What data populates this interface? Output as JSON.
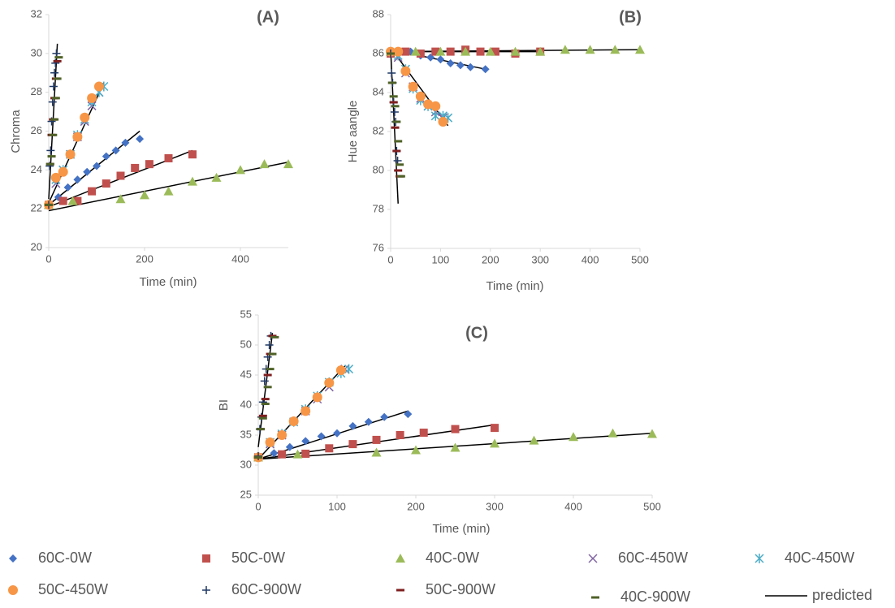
{
  "legend": [
    {
      "name": "60C-0W",
      "color": "#4472c4",
      "marker": "diamond"
    },
    {
      "name": "50C-0W",
      "color": "#c0504d",
      "marker": "square"
    },
    {
      "name": "40C-0W",
      "color": "#9bbb59",
      "marker": "triangle"
    },
    {
      "name": "60C-450W",
      "color": "#8064a2",
      "marker": "x"
    },
    {
      "name": "40C-450W",
      "color": "#4bacc6",
      "marker": "asterisk"
    },
    {
      "name": "50C-450W",
      "color": "#f79646",
      "marker": "circle"
    },
    {
      "name": "60C-900W",
      "color": "#1f3864",
      "marker": "plus"
    },
    {
      "name": "50C-900W",
      "color": "#7f1f1f",
      "marker": "dash"
    },
    {
      "name": "40C-900W",
      "color": "#4f6228",
      "marker": "dash"
    },
    {
      "name": "predicted",
      "color": "#000000",
      "marker": "line"
    }
  ],
  "chart_data": [
    {
      "type": "scatter",
      "title": "(A)",
      "xlabel": "Time (min)",
      "ylabel": "Chroma",
      "xlim": [
        0,
        500
      ],
      "ylim": [
        20,
        32
      ],
      "xticks": [
        0,
        200,
        400
      ],
      "yticks": [
        20,
        22,
        24,
        26,
        28,
        30,
        32
      ],
      "series": [
        {
          "x": [
            0,
            20,
            40,
            60,
            80,
            100,
            120,
            140,
            160,
            190
          ],
          "values": [
            22.2,
            22.6,
            23.1,
            23.5,
            23.9,
            24.2,
            24.7,
            25.0,
            25.4,
            25.6
          ]
        },
        {
          "x": [
            0,
            30,
            60,
            90,
            120,
            150,
            180,
            210,
            250,
            300
          ],
          "values": [
            22.2,
            22.4,
            22.4,
            22.9,
            23.3,
            23.7,
            24.1,
            24.3,
            24.6,
            24.8
          ]
        },
        {
          "x": [
            0,
            50,
            150,
            200,
            250,
            300,
            350,
            400,
            450,
            500
          ],
          "values": [
            22.2,
            22.4,
            22.5,
            22.7,
            22.9,
            23.4,
            23.6,
            24.0,
            24.3,
            24.3
          ]
        },
        {
          "x": [
            15,
            30,
            45,
            60,
            75,
            90,
            105
          ],
          "values": [
            23.3,
            24.0,
            24.8,
            25.7,
            26.5,
            27.3,
            28.0
          ]
        },
        {
          "x": [
            15,
            30,
            45,
            60,
            75,
            90,
            105,
            115
          ],
          "values": [
            23.5,
            24.0,
            24.8,
            25.8,
            26.6,
            27.5,
            28.0,
            28.3
          ]
        },
        {
          "x": [
            0,
            15,
            30,
            45,
            60,
            75,
            90,
            105
          ],
          "values": [
            22.2,
            23.6,
            23.9,
            24.8,
            25.7,
            26.7,
            27.7,
            28.3
          ]
        },
        {
          "x": [
            0,
            2,
            4,
            6,
            8,
            10,
            12,
            14,
            16
          ],
          "values": [
            22.2,
            24.2,
            25.0,
            26.5,
            27.5,
            28.3,
            29.0,
            29.5,
            30.0
          ]
        },
        {
          "x": [
            0,
            3,
            6,
            9,
            12,
            15,
            18
          ],
          "values": [
            22.2,
            24.3,
            25.8,
            26.6,
            27.7,
            28.7,
            29.6
          ]
        },
        {
          "x": [
            0,
            3,
            6,
            9,
            12,
            15,
            18,
            21
          ],
          "values": [
            22.2,
            24.3,
            24.7,
            25.8,
            26.6,
            27.7,
            28.7,
            29.8
          ]
        }
      ],
      "predicted": [
        {
          "x": [
            0,
            190
          ],
          "values": [
            22.2,
            26.0
          ]
        },
        {
          "x": [
            0,
            300
          ],
          "values": [
            22.1,
            25.0
          ]
        },
        {
          "x": [
            0,
            500
          ],
          "values": [
            21.9,
            24.4
          ]
        },
        {
          "x": [
            0,
            115
          ],
          "values": [
            22.3,
            28.5
          ]
        },
        {
          "x": [
            0,
            18
          ],
          "values": [
            22.5,
            30.5
          ]
        }
      ]
    },
    {
      "type": "scatter",
      "title": "(B)",
      "xlabel": "Time (min)",
      "ylabel": "Hue aangle",
      "xlim": [
        0,
        500
      ],
      "ylim": [
        76,
        88
      ],
      "xticks": [
        0,
        100,
        200,
        300,
        400,
        500
      ],
      "yticks": [
        76,
        78,
        80,
        82,
        84,
        86,
        88
      ],
      "series": [
        {
          "x": [
            0,
            40,
            60,
            80,
            100,
            120,
            140,
            160,
            190
          ],
          "values": [
            86.0,
            86.1,
            85.9,
            85.8,
            85.7,
            85.5,
            85.4,
            85.3,
            85.2
          ]
        },
        {
          "x": [
            0,
            30,
            60,
            90,
            120,
            150,
            180,
            210,
            250,
            300
          ],
          "values": [
            86.0,
            86.1,
            86.0,
            86.1,
            86.1,
            86.2,
            86.1,
            86.1,
            86.0,
            86.1
          ]
        },
        {
          "x": [
            0,
            50,
            100,
            150,
            200,
            250,
            300,
            350,
            400,
            450,
            500
          ],
          "values": [
            86.1,
            86.1,
            86.1,
            86.1,
            86.1,
            86.1,
            86.1,
            86.2,
            86.2,
            86.2,
            86.2
          ]
        },
        {
          "x": [
            15,
            30,
            45,
            60,
            75,
            90,
            105
          ],
          "values": [
            85.8,
            85.0,
            84.3,
            83.7,
            83.3,
            83.0,
            82.7
          ]
        },
        {
          "x": [
            15,
            30,
            45,
            60,
            75,
            90,
            105,
            115
          ],
          "values": [
            85.9,
            85.2,
            84.2,
            83.6,
            83.3,
            82.8,
            82.8,
            82.7
          ]
        },
        {
          "x": [
            0,
            15,
            30,
            45,
            60,
            75,
            90,
            105
          ],
          "values": [
            86.1,
            86.1,
            85.1,
            84.3,
            83.8,
            83.4,
            83.3,
            82.5
          ]
        },
        {
          "x": [
            0,
            2,
            4,
            6,
            8,
            10,
            12,
            14
          ],
          "values": [
            86.0,
            85.0,
            84.5,
            83.5,
            83.0,
            82.5,
            81.0,
            80.5
          ]
        },
        {
          "x": [
            0,
            3,
            6,
            9,
            12,
            15,
            18
          ],
          "values": [
            86.0,
            84.5,
            83.5,
            82.2,
            81.0,
            80.0,
            79.7
          ]
        },
        {
          "x": [
            0,
            3,
            6,
            9,
            12,
            15,
            18,
            21
          ],
          "values": [
            86.0,
            84.5,
            83.8,
            83.3,
            82.5,
            81.5,
            80.3,
            79.7
          ]
        }
      ],
      "predicted": [
        {
          "x": [
            0,
            190
          ],
          "values": [
            86.2,
            85.2
          ]
        },
        {
          "x": [
            0,
            300
          ],
          "values": [
            86.1,
            86.1
          ]
        },
        {
          "x": [
            0,
            500
          ],
          "values": [
            86.1,
            86.2
          ]
        },
        {
          "x": [
            0,
            115
          ],
          "values": [
            86.3,
            82.3
          ]
        },
        {
          "x": [
            0,
            15
          ],
          "values": [
            86.2,
            78.3
          ]
        }
      ]
    },
    {
      "type": "scatter",
      "title": "(C)",
      "xlabel": "Time (min)",
      "ylabel": "BI",
      "xlim": [
        0,
        500
      ],
      "ylim": [
        25,
        55
      ],
      "xticks": [
        0,
        100,
        200,
        300,
        400,
        500
      ],
      "yticks": [
        25,
        30,
        35,
        40,
        45,
        50,
        55
      ],
      "series": [
        {
          "x": [
            0,
            20,
            40,
            60,
            80,
            100,
            120,
            140,
            160,
            190
          ],
          "values": [
            31.5,
            32.0,
            33.0,
            34.0,
            34.8,
            35.3,
            36.5,
            37.2,
            38.0,
            38.5
          ]
        },
        {
          "x": [
            0,
            30,
            60,
            90,
            120,
            150,
            180,
            210,
            250,
            300
          ],
          "values": [
            31.3,
            31.8,
            31.9,
            32.8,
            33.5,
            34.2,
            35.0,
            35.4,
            36.0,
            36.2
          ]
        },
        {
          "x": [
            0,
            50,
            150,
            200,
            250,
            300,
            350,
            400,
            450,
            500
          ],
          "values": [
            31.3,
            31.8,
            32.1,
            32.5,
            32.9,
            33.6,
            34.1,
            34.7,
            35.3,
            35.2
          ]
        },
        {
          "x": [
            15,
            30,
            45,
            60,
            75,
            90,
            110
          ],
          "values": [
            33.5,
            35.0,
            37.2,
            39.0,
            41.0,
            43.0,
            46.0
          ]
        },
        {
          "x": [
            15,
            30,
            45,
            60,
            75,
            90,
            105,
            115
          ],
          "values": [
            33.8,
            35.2,
            37.2,
            39.3,
            41.5,
            43.8,
            45.3,
            46.0
          ]
        },
        {
          "x": [
            0,
            15,
            30,
            45,
            60,
            75,
            90,
            105
          ],
          "values": [
            31.3,
            33.8,
            35.0,
            37.3,
            39.0,
            41.3,
            43.7,
            45.8
          ]
        },
        {
          "x": [
            0,
            2,
            4,
            6,
            8,
            10,
            12,
            14,
            16
          ],
          "values": [
            31.5,
            36.0,
            38.0,
            40.5,
            44.0,
            46.0,
            48.0,
            50.0,
            51.5
          ]
        },
        {
          "x": [
            0,
            3,
            6,
            9,
            12,
            15,
            18
          ],
          "values": [
            31.3,
            36.0,
            38.2,
            41.0,
            45.0,
            48.5,
            51.5
          ]
        },
        {
          "x": [
            0,
            3,
            6,
            9,
            12,
            15,
            18,
            21
          ],
          "values": [
            31.3,
            36.0,
            37.8,
            40.2,
            43.0,
            46.0,
            48.5,
            51.3
          ]
        }
      ],
      "predicted": [
        {
          "x": [
            0,
            190
          ],
          "values": [
            31.0,
            39.0
          ]
        },
        {
          "x": [
            0,
            300
          ],
          "values": [
            31.0,
            36.7
          ]
        },
        {
          "x": [
            0,
            500
          ],
          "values": [
            31.0,
            35.3
          ]
        },
        {
          "x": [
            0,
            110
          ],
          "values": [
            31.0,
            46.5
          ]
        },
        {
          "x": [
            0,
            18
          ],
          "values": [
            33.0,
            52.0
          ]
        }
      ]
    }
  ]
}
